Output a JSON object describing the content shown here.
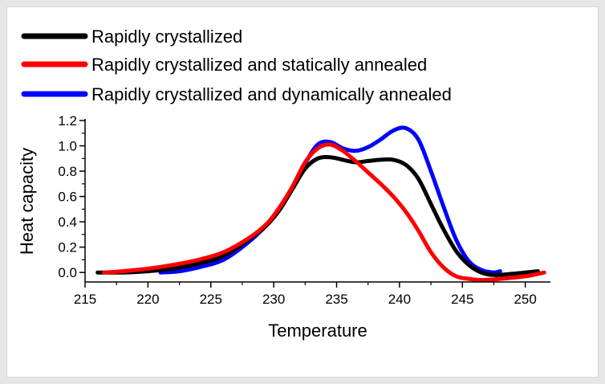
{
  "chart_data": {
    "type": "line",
    "xlabel": "Temperature",
    "ylabel": "Heat capacity",
    "xlim": [
      215,
      252
    ],
    "ylim": [
      -0.075,
      1.2
    ],
    "xticks": [
      215,
      220,
      225,
      230,
      235,
      240,
      245,
      250
    ],
    "yticks": [
      0.0,
      0.2,
      0.4,
      0.6,
      0.8,
      1.0,
      1.2
    ],
    "xtick_labels": [
      "215",
      "220",
      "225",
      "230",
      "235",
      "240",
      "245",
      "250"
    ],
    "ytick_labels": [
      "0.0",
      "0.2",
      "0.4",
      "0.6",
      "0.8",
      "1.0",
      "1.2"
    ],
    "grid": false,
    "legend_position": "top-left",
    "series": [
      {
        "name": "Rapidly crystallized",
        "color": "#000000",
        "x": [
          216,
          218,
          220,
          222,
          224,
          226,
          228,
          229.5,
          230.5,
          231.5,
          232.5,
          233.5,
          234.5,
          235.5,
          236.5,
          237.5,
          238.5,
          239.5,
          240.5,
          241.5,
          242.5,
          243.5,
          244.5,
          245.5,
          246.5,
          247.5,
          249,
          251
        ],
        "y": [
          0.0,
          0.0,
          0.01,
          0.03,
          0.07,
          0.13,
          0.26,
          0.38,
          0.5,
          0.66,
          0.82,
          0.9,
          0.91,
          0.89,
          0.87,
          0.88,
          0.89,
          0.89,
          0.85,
          0.74,
          0.54,
          0.34,
          0.17,
          0.06,
          0.0,
          -0.02,
          -0.01,
          0.01
        ]
      },
      {
        "name": "Rapidly crystallized and statically annealed",
        "color": "#ff0000",
        "x": [
          216.5,
          218,
          220,
          222,
          224,
          226,
          228,
          229.5,
          230.5,
          231.5,
          232.5,
          233.5,
          234.5,
          235.5,
          236.5,
          237.5,
          238.5,
          239.5,
          240.5,
          241.5,
          242.5,
          243.5,
          244.5,
          245.5,
          246.5,
          248,
          250,
          251.5
        ],
        "y": [
          0.0,
          0.01,
          0.03,
          0.06,
          0.1,
          0.16,
          0.27,
          0.39,
          0.52,
          0.68,
          0.87,
          0.98,
          1.01,
          0.96,
          0.88,
          0.79,
          0.7,
          0.6,
          0.48,
          0.33,
          0.16,
          0.04,
          -0.03,
          -0.05,
          -0.06,
          -0.05,
          -0.03,
          0.0
        ]
      },
      {
        "name": "Rapidly crystallized and dynamically annealed",
        "color": "#0000ff",
        "x": [
          221,
          222.5,
          224,
          226,
          228,
          229.5,
          230.5,
          231.5,
          232.5,
          233.5,
          234.5,
          235.5,
          236.5,
          237.5,
          238.5,
          239.5,
          240.5,
          241.5,
          242.5,
          243.5,
          244.5,
          245.5,
          246.5,
          247.5,
          248
        ],
        "y": [
          0.0,
          0.01,
          0.04,
          0.1,
          0.24,
          0.38,
          0.5,
          0.67,
          0.86,
          1.01,
          1.03,
          0.98,
          0.96,
          0.99,
          1.05,
          1.12,
          1.14,
          1.05,
          0.8,
          0.52,
          0.26,
          0.09,
          0.02,
          0.0,
          0.01
        ]
      }
    ]
  }
}
